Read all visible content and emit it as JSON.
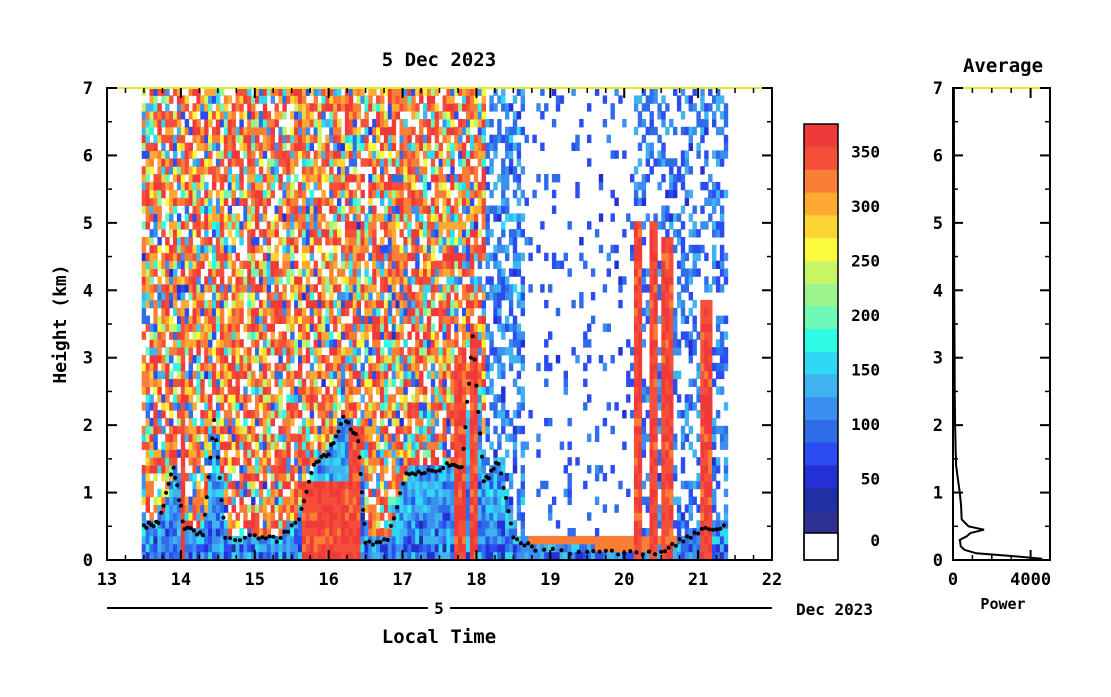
{
  "chart_data": [
    {
      "type": "heatmap",
      "title": "5 Dec 2023",
      "xlabel": "Local Time",
      "ylabel": "Height (km)",
      "xlim": [
        13,
        22
      ],
      "ylim": [
        0,
        7
      ],
      "x_ticks": [
        "13",
        "14",
        "15",
        "16",
        "17",
        "18",
        "19",
        "20",
        "21",
        "22"
      ],
      "y_ticks": [
        "0",
        "1",
        "2",
        "3",
        "4",
        "5",
        "6",
        "7"
      ],
      "date_axis": {
        "day_label": "5",
        "month_label": "Dec 2023"
      },
      "colorbar": {
        "range": [
          0,
          375
        ],
        "tick_labels": [
          "0",
          "50",
          "100",
          "150",
          "200",
          "250",
          "300",
          "350"
        ],
        "colors": [
          "#2e3192",
          "#1f2fa6",
          "#2430d6",
          "#2a4cf0",
          "#2f6de8",
          "#3b8ff0",
          "#3fb2f0",
          "#2fd8f3",
          "#2dfbe3",
          "#6ef7b6",
          "#9cf58c",
          "#c8f566",
          "#fbfb3c",
          "#fdd535",
          "#fdaa33",
          "#fb7e36",
          "#f54f39",
          "#f03a3a"
        ]
      },
      "time_range_data": [
        13.47,
        21.4
      ],
      "boundary_layer_km": [
        [
          13.5,
          0.5
        ],
        [
          13.7,
          0.55
        ],
        [
          13.9,
          1.4
        ],
        [
          14.05,
          0.45
        ],
        [
          14.3,
          0.4
        ],
        [
          14.45,
          2.1
        ],
        [
          14.6,
          0.3
        ],
        [
          15.0,
          0.35
        ],
        [
          15.3,
          0.3
        ],
        [
          15.6,
          0.6
        ],
        [
          15.8,
          1.4
        ],
        [
          16.0,
          1.6
        ],
        [
          16.2,
          2.1
        ],
        [
          16.4,
          1.8
        ],
        [
          16.5,
          0.25
        ],
        [
          16.8,
          0.3
        ],
        [
          17.05,
          1.3
        ],
        [
          17.3,
          1.3
        ],
        [
          17.6,
          1.4
        ],
        [
          17.8,
          1.35
        ],
        [
          17.95,
          3.3
        ],
        [
          18.1,
          1.15
        ],
        [
          18.3,
          1.45
        ],
        [
          18.5,
          0.35
        ],
        [
          18.8,
          0.15
        ],
        [
          19.5,
          0.12
        ],
        [
          20.0,
          0.1
        ],
        [
          20.5,
          0.12
        ],
        [
          20.8,
          0.3
        ],
        [
          21.1,
          0.45
        ],
        [
          21.4,
          0.5
        ]
      ]
    },
    {
      "type": "line",
      "title": "Average",
      "xlabel": "Power",
      "ylabel": "",
      "xlim": [
        0,
        5000
      ],
      "ylim": [
        0,
        7
      ],
      "x_ticks": [
        "0",
        "4000"
      ],
      "y_ticks": [
        "0",
        "1",
        "2",
        "3",
        "4",
        "5",
        "6",
        "7"
      ],
      "series": [
        {
          "values": [
            [
              4600,
              0.02
            ],
            [
              3000,
              0.06
            ],
            [
              1200,
              0.1
            ],
            [
              600,
              0.15
            ],
            [
              400,
              0.2
            ],
            [
              350,
              0.3
            ],
            [
              700,
              0.35
            ],
            [
              900,
              0.4
            ],
            [
              1600,
              0.45
            ],
            [
              800,
              0.5
            ],
            [
              450,
              0.6
            ],
            [
              420,
              0.8
            ],
            [
              350,
              1.0
            ],
            [
              250,
              1.2
            ],
            [
              160,
              1.4
            ],
            [
              140,
              1.6
            ],
            [
              110,
              2.0
            ],
            [
              90,
              2.5
            ],
            [
              85,
              3.0
            ],
            [
              70,
              3.5
            ],
            [
              60,
              4.0
            ],
            [
              55,
              5.0
            ],
            [
              50,
              6.0
            ],
            [
              45,
              7.0
            ]
          ]
        }
      ]
    }
  ]
}
